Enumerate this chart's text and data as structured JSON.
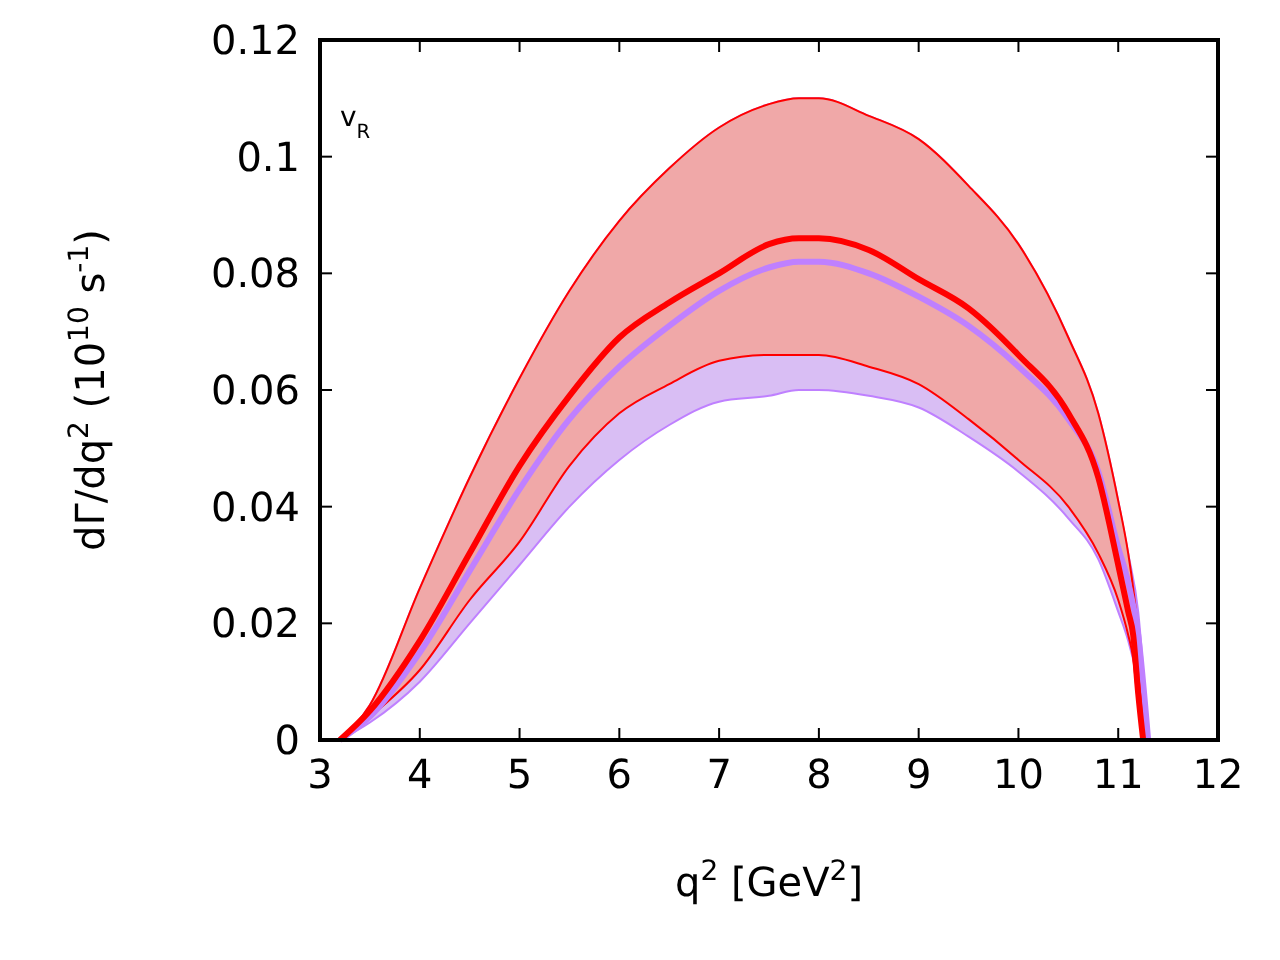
{
  "chart_data": {
    "type": "line",
    "xlabel": "q$^{2}$ [GeV$^{2}$]",
    "ylabel": "dΓ/dq$^{2}$  (10$^{10}$ s$^{-1}$)",
    "annotations": [
      "v$_{R}$"
    ],
    "xlim": [
      3,
      12
    ],
    "xticks": [
      3,
      4,
      5,
      6,
      7,
      8,
      9,
      10,
      11,
      12
    ],
    "ylim": [
      0,
      0.12
    ],
    "yticks": [
      0,
      0.02,
      0.04,
      0.06,
      0.08,
      0.1,
      0.12
    ],
    "grid": false,
    "series": [
      {
        "color": "#bf80ff",
        "x": [
          3.2,
          3.5,
          4,
          4.5,
          5,
          5.5,
          6,
          6.5,
          7,
          7.5,
          7.8,
          8,
          8.5,
          9,
          9.5,
          10,
          10.5,
          10.8,
          11,
          11.1,
          11.2,
          11.3
        ],
        "values": [
          0,
          0.004,
          0.015,
          0.029,
          0.043,
          0.055,
          0.064,
          0.071,
          0.077,
          0.081,
          0.082,
          0.082,
          0.08,
          0.076,
          0.071,
          0.064,
          0.055,
          0.046,
          0.033,
          0.027,
          0.018,
          0
        ],
        "lower": [
          0,
          0.003,
          0.01,
          0.02,
          0.03,
          0.04,
          0.048,
          0.054,
          0.058,
          0.059,
          0.06,
          0.06,
          0.059,
          0.057,
          0.052,
          0.046,
          0.038,
          0.031,
          0.022,
          0.017,
          0.01,
          0
        ],
        "upper": [
          0,
          0.006,
          0.026,
          0.045,
          0.062,
          0.077,
          0.089,
          0.098,
          0.105,
          0.109,
          0.11,
          0.11,
          0.107,
          0.103,
          0.095,
          0.085,
          0.069,
          0.056,
          0.041,
          0.032,
          0.022,
          0
        ]
      },
      {
        "color": "#ff0000",
        "x": [
          3.2,
          3.5,
          4,
          4.5,
          5,
          5.5,
          6,
          6.5,
          7,
          7.5,
          7.8,
          8,
          8.5,
          9,
          9.5,
          10,
          10.5,
          10.8,
          11,
          11.1,
          11.15,
          11.2,
          11.25
        ],
        "values": [
          0,
          0.005,
          0.017,
          0.032,
          0.047,
          0.059,
          0.069,
          0.075,
          0.08,
          0.085,
          0.086,
          0.086,
          0.084,
          0.079,
          0.074,
          0.066,
          0.056,
          0.045,
          0.03,
          0.022,
          0.018,
          0.008,
          0
        ],
        "lower": [
          0,
          0.004,
          0.012,
          0.024,
          0.034,
          0.047,
          0.056,
          0.061,
          0.065,
          0.066,
          0.066,
          0.066,
          0.064,
          0.061,
          0.055,
          0.048,
          0.04,
          0.032,
          0.024,
          0.018,
          0.014,
          0.006,
          0
        ],
        "upper": [
          0,
          0.006,
          0.026,
          0.045,
          0.062,
          0.077,
          0.089,
          0.098,
          0.105,
          0.109,
          0.11,
          0.11,
          0.107,
          0.103,
          0.095,
          0.085,
          0.069,
          0.056,
          0.041,
          0.032,
          0.026,
          0.018,
          0
        ]
      }
    ]
  }
}
